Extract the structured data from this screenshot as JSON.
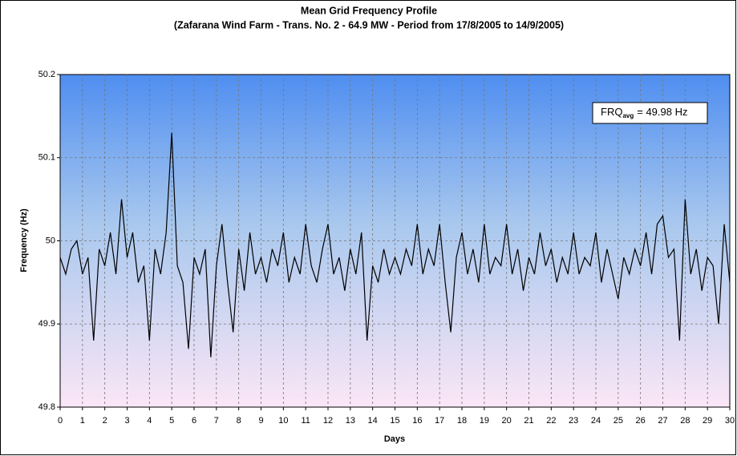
{
  "chart_data": {
    "type": "line",
    "title": "Mean Grid Frequency Profile",
    "subtitle": "(Zafarana Wind Farm - Trans. No. 2 - 64.9 MW - Period from 17/8/2005 to 14/9/2005)",
    "x_label": "Days",
    "y_label": "Frequency (Hz)",
    "annotation": {
      "main": "FRQ",
      "sub": "avg",
      "tail": "= 49.98 Hz"
    },
    "xlim": [
      0,
      30
    ],
    "xticks": [
      0,
      1,
      2,
      3,
      4,
      5,
      6,
      7,
      8,
      9,
      10,
      11,
      12,
      13,
      14,
      15,
      16,
      17,
      18,
      19,
      20,
      21,
      22,
      23,
      24,
      25,
      26,
      27,
      28,
      29,
      30
    ],
    "ylim": [
      49.8,
      50.2
    ],
    "yticks": [
      49.8,
      49.9,
      50,
      50.1,
      50.2
    ],
    "grid": true,
    "color": "#000000",
    "x": [
      0,
      0.25,
      0.5,
      0.75,
      1,
      1.25,
      1.5,
      1.75,
      2,
      2.25,
      2.5,
      2.75,
      3,
      3.25,
      3.5,
      3.75,
      4,
      4.25,
      4.5,
      4.75,
      5,
      5.25,
      5.5,
      5.75,
      6,
      6.25,
      6.5,
      6.75,
      7,
      7.25,
      7.5,
      7.75,
      8,
      8.25,
      8.5,
      8.75,
      9,
      9.25,
      9.5,
      9.75,
      10,
      10.25,
      10.5,
      10.75,
      11,
      11.25,
      11.5,
      11.75,
      12,
      12.25,
      12.5,
      12.75,
      13,
      13.25,
      13.5,
      13.75,
      14,
      14.25,
      14.5,
      14.75,
      15,
      15.25,
      15.5,
      15.75,
      16,
      16.25,
      16.5,
      16.75,
      17,
      17.25,
      17.5,
      17.75,
      18,
      18.25,
      18.5,
      18.75,
      19,
      19.25,
      19.5,
      19.75,
      20,
      20.25,
      20.5,
      20.75,
      21,
      21.25,
      21.5,
      21.75,
      22,
      22.25,
      22.5,
      22.75,
      23,
      23.25,
      23.5,
      23.75,
      24,
      24.25,
      24.5,
      24.75,
      25,
      25.25,
      25.5,
      25.75,
      26,
      26.25,
      26.5,
      26.75,
      27,
      27.25,
      27.5,
      27.75,
      28,
      28.25,
      28.5,
      28.75,
      29,
      29.25,
      29.5,
      29.75,
      30
    ],
    "values": [
      49.98,
      49.96,
      49.99,
      50.0,
      49.96,
      49.98,
      49.88,
      49.99,
      49.97,
      50.01,
      49.96,
      50.05,
      49.98,
      50.01,
      49.95,
      49.97,
      49.88,
      49.99,
      49.96,
      50.01,
      50.13,
      49.97,
      49.95,
      49.87,
      49.98,
      49.96,
      49.99,
      49.86,
      49.97,
      50.02,
      49.95,
      49.89,
      49.99,
      49.94,
      50.01,
      49.96,
      49.98,
      49.95,
      49.99,
      49.97,
      50.01,
      49.95,
      49.98,
      49.96,
      50.02,
      49.97,
      49.95,
      49.99,
      50.02,
      49.96,
      49.98,
      49.94,
      49.99,
      49.96,
      50.01,
      49.88,
      49.97,
      49.95,
      49.99,
      49.96,
      49.98,
      49.96,
      49.99,
      49.97,
      50.02,
      49.96,
      49.99,
      49.97,
      50.02,
      49.95,
      49.89,
      49.98,
      50.01,
      49.96,
      49.99,
      49.95,
      50.02,
      49.96,
      49.98,
      49.97,
      50.02,
      49.96,
      49.99,
      49.94,
      49.98,
      49.96,
      50.01,
      49.97,
      49.99,
      49.95,
      49.98,
      49.96,
      50.01,
      49.96,
      49.98,
      49.97,
      50.01,
      49.95,
      49.99,
      49.96,
      49.93,
      49.98,
      49.96,
      49.99,
      49.97,
      50.01,
      49.96,
      50.02,
      50.03,
      49.98,
      49.99,
      49.88,
      50.05,
      49.96,
      49.99,
      49.94,
      49.98,
      49.97,
      49.9,
      50.02,
      49.95
    ]
  }
}
